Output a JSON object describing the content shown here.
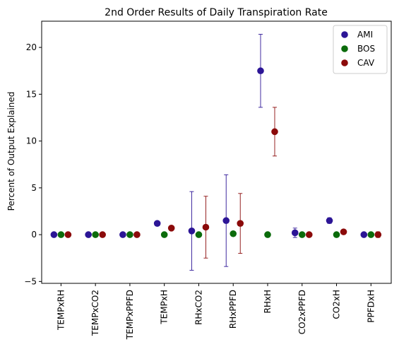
{
  "chart_data": {
    "type": "scatter",
    "title": "2nd Order Results of Daily Transpiration Rate",
    "xlabel": "",
    "ylabel": "Percent of Output Explained",
    "ylim": [
      -5.2,
      22.8
    ],
    "yticks": [
      -5,
      0,
      5,
      10,
      15,
      20
    ],
    "grid": false,
    "legend_position": "top-right",
    "categories": [
      "TEMPxRH",
      "TEMPxCO2",
      "TEMPxPPFD",
      "TEMPxH",
      "RHxCO2",
      "RHxPPFD",
      "RHxH",
      "CO2xPPFD",
      "CO2xH",
      "PPFDxH"
    ],
    "series": [
      {
        "name": "AMI",
        "color": "#2c1596",
        "values": [
          0.0,
          0.0,
          0.0,
          1.2,
          0.4,
          1.5,
          17.5,
          0.2,
          1.5,
          0.0
        ],
        "errors": [
          0.0,
          0.0,
          0.0,
          0.15,
          4.2,
          4.9,
          3.9,
          0.5,
          0.3,
          0.0
        ]
      },
      {
        "name": "BOS",
        "color": "#0b6b0b",
        "values": [
          0.0,
          0.0,
          0.0,
          0.0,
          0.0,
          0.1,
          0.0,
          0.0,
          0.0,
          0.0
        ],
        "errors": [
          0.0,
          0.0,
          0.0,
          0.0,
          0.0,
          0.0,
          0.0,
          0.0,
          0.0,
          0.0
        ]
      },
      {
        "name": "CAV",
        "color": "#8b0a0a",
        "values": [
          0.0,
          0.0,
          0.0,
          0.7,
          0.8,
          1.2,
          11.0,
          0.0,
          0.3,
          0.0
        ],
        "errors": [
          0.0,
          0.0,
          0.0,
          0.1,
          3.3,
          3.2,
          2.6,
          0.0,
          0.1,
          0.3
        ]
      }
    ]
  }
}
